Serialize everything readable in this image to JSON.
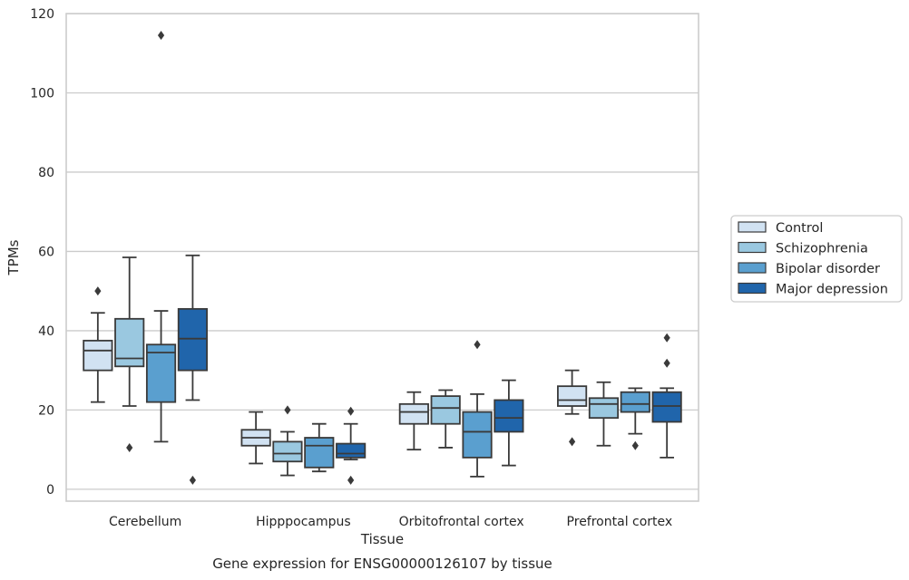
{
  "chart_data": {
    "type": "box",
    "xlabel": "Tissue",
    "ylabel": "TPMs",
    "caption": "Gene expression for ENSG00000126107 by tissue",
    "ylim": [
      -3,
      120
    ],
    "yticks": [
      0,
      20,
      40,
      60,
      80,
      100,
      120
    ],
    "grid": true,
    "legend_position": "right",
    "categories": [
      "Cerebellum",
      "Hipppocampus",
      "Orbitofrontal cortex",
      "Prefrontal cortex"
    ],
    "series": [
      {
        "name": "Control",
        "color": "#d1e2f2",
        "boxes": [
          {
            "whisker_low": 22,
            "q1": 30,
            "median": 35,
            "q3": 37.5,
            "whisker_high": 44.5,
            "outliers": [
              50
            ]
          },
          {
            "whisker_low": 6.5,
            "q1": 11,
            "median": 13,
            "q3": 15,
            "whisker_high": 19.5,
            "outliers": []
          },
          {
            "whisker_low": 10,
            "q1": 16.5,
            "median": 19.5,
            "q3": 21.5,
            "whisker_high": 24.5,
            "outliers": []
          },
          {
            "whisker_low": 19,
            "q1": 21,
            "median": 22.5,
            "q3": 26,
            "whisker_high": 30,
            "outliers": [
              12
            ]
          }
        ]
      },
      {
        "name": "Schizophrenia",
        "color": "#9ac8e0",
        "boxes": [
          {
            "whisker_low": 21,
            "q1": 31,
            "median": 33,
            "q3": 43,
            "whisker_high": 58.5,
            "outliers": [
              10.5
            ]
          },
          {
            "whisker_low": 3.5,
            "q1": 7,
            "median": 9,
            "q3": 12,
            "whisker_high": 14.5,
            "outliers": [
              20
            ]
          },
          {
            "whisker_low": 10.5,
            "q1": 16.5,
            "median": 20.5,
            "q3": 23.5,
            "whisker_high": 25,
            "outliers": []
          },
          {
            "whisker_low": 11,
            "q1": 18,
            "median": 21.5,
            "q3": 23,
            "whisker_high": 27,
            "outliers": []
          }
        ]
      },
      {
        "name": "Bipolar disorder",
        "color": "#5a9fcf",
        "boxes": [
          {
            "whisker_low": 12,
            "q1": 22,
            "median": 34.5,
            "q3": 36.5,
            "whisker_high": 45,
            "outliers": [
              114.5
            ]
          },
          {
            "whisker_low": 4.5,
            "q1": 5.5,
            "median": 11,
            "q3": 13,
            "whisker_high": 16.5,
            "outliers": []
          },
          {
            "whisker_low": 3.2,
            "q1": 8,
            "median": 14.5,
            "q3": 19.5,
            "whisker_high": 24,
            "outliers": [
              36.5
            ]
          },
          {
            "whisker_low": 14,
            "q1": 19.5,
            "median": 21.5,
            "q3": 24.5,
            "whisker_high": 25.5,
            "outliers": [
              11
            ]
          }
        ]
      },
      {
        "name": "Major depression",
        "color": "#2065ab",
        "boxes": [
          {
            "whisker_low": 22.5,
            "q1": 30,
            "median": 38,
            "q3": 45.5,
            "whisker_high": 59,
            "outliers": [
              2.3
            ]
          },
          {
            "whisker_low": 7.5,
            "q1": 8,
            "median": 9,
            "q3": 11.5,
            "whisker_high": 16.5,
            "outliers": [
              19.7,
              2.3
            ]
          },
          {
            "whisker_low": 6,
            "q1": 14.5,
            "median": 18,
            "q3": 22.5,
            "whisker_high": 27.5,
            "outliers": []
          },
          {
            "whisker_low": 8,
            "q1": 17,
            "median": 21,
            "q3": 24.5,
            "whisker_high": 25.5,
            "outliers": [
              38.2,
              31.8
            ]
          }
        ]
      }
    ]
  }
}
